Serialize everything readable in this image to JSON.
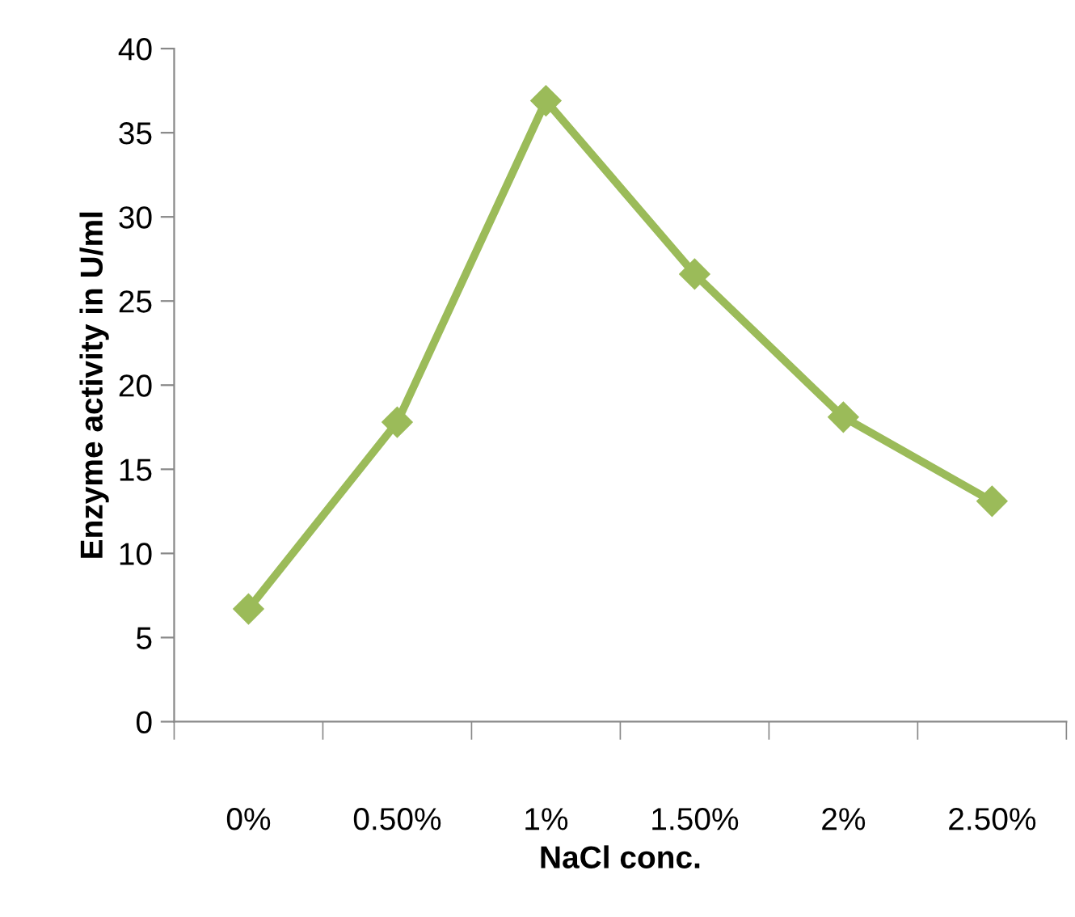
{
  "chart_data": {
    "type": "line",
    "xlabel": "NaCl conc.",
    "ylabel": "Enzyme activity in U/ml",
    "categories": [
      "0%",
      "0.50%",
      "1%",
      "1.50%",
      "2%",
      "2.50%"
    ],
    "series": [
      {
        "color": "#9bbb59",
        "values": [
          6.7,
          17.8,
          36.9,
          26.6,
          18.1,
          13.1
        ]
      }
    ],
    "ylim": [
      0,
      40
    ],
    "yticks": [
      0,
      5,
      10,
      15,
      20,
      25,
      30,
      35,
      40
    ],
    "marker": "diamond",
    "line_style": "solid",
    "grid": false,
    "legend": false
  }
}
